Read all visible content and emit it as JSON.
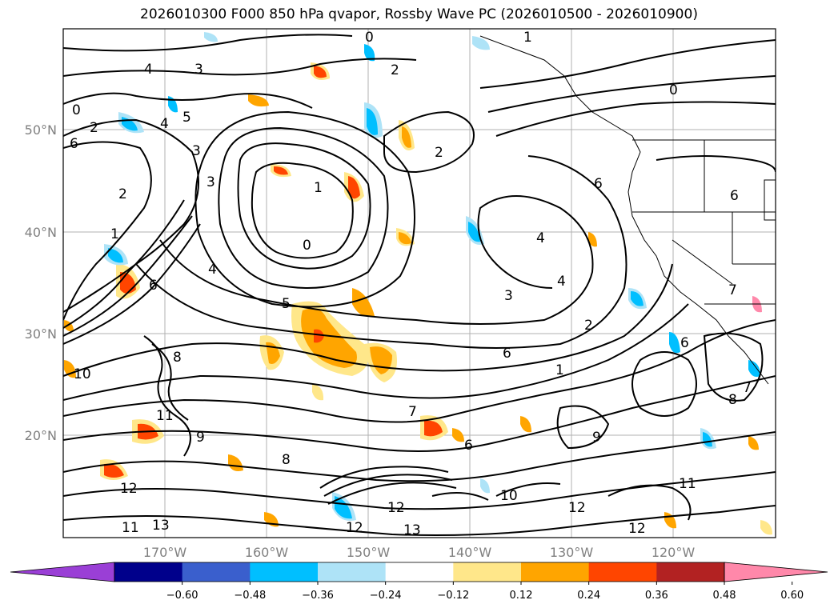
{
  "title": "2026010300 F000 850 hPa qvapor, Rossby Wave PC (2026010500 - 2026010900)",
  "lat_labels": [
    "50°N",
    "40°N",
    "30°N",
    "20°N"
  ],
  "lon_labels": [
    "170°W",
    "160°W",
    "150°W",
    "140°W",
    "130°W",
    "120°W"
  ],
  "colorbar": {
    "colors": [
      "#9a3fd6",
      "#00008b",
      "#3a5fcd",
      "#00bfff",
      "#aee3f7",
      "#ffffff",
      "#ffe78a",
      "#ffa500",
      "#ff4500",
      "#b22222",
      "#ff88aa"
    ],
    "ticks": [
      "−0.60",
      "−0.48",
      "−0.36",
      "−0.24",
      "−0.12",
      "0.12",
      "0.24",
      "0.36",
      "0.48",
      "0.60"
    ]
  },
  "contour_labels": [
    "4",
    "3",
    "2",
    "2",
    "1",
    "0",
    "6",
    "5",
    "4",
    "3",
    "2",
    "1",
    "0",
    "6",
    "2",
    "1",
    "0",
    "6",
    "4",
    "4",
    "3",
    "2",
    "1",
    "0",
    "4",
    "3",
    "6",
    "5",
    "6",
    "10",
    "8",
    "11",
    "9",
    "8",
    "7",
    "12",
    "13",
    "11",
    "12",
    "13",
    "12",
    "12",
    "10",
    "11",
    "12",
    "6",
    "7",
    "8",
    "9",
    "7",
    "6"
  ]
}
